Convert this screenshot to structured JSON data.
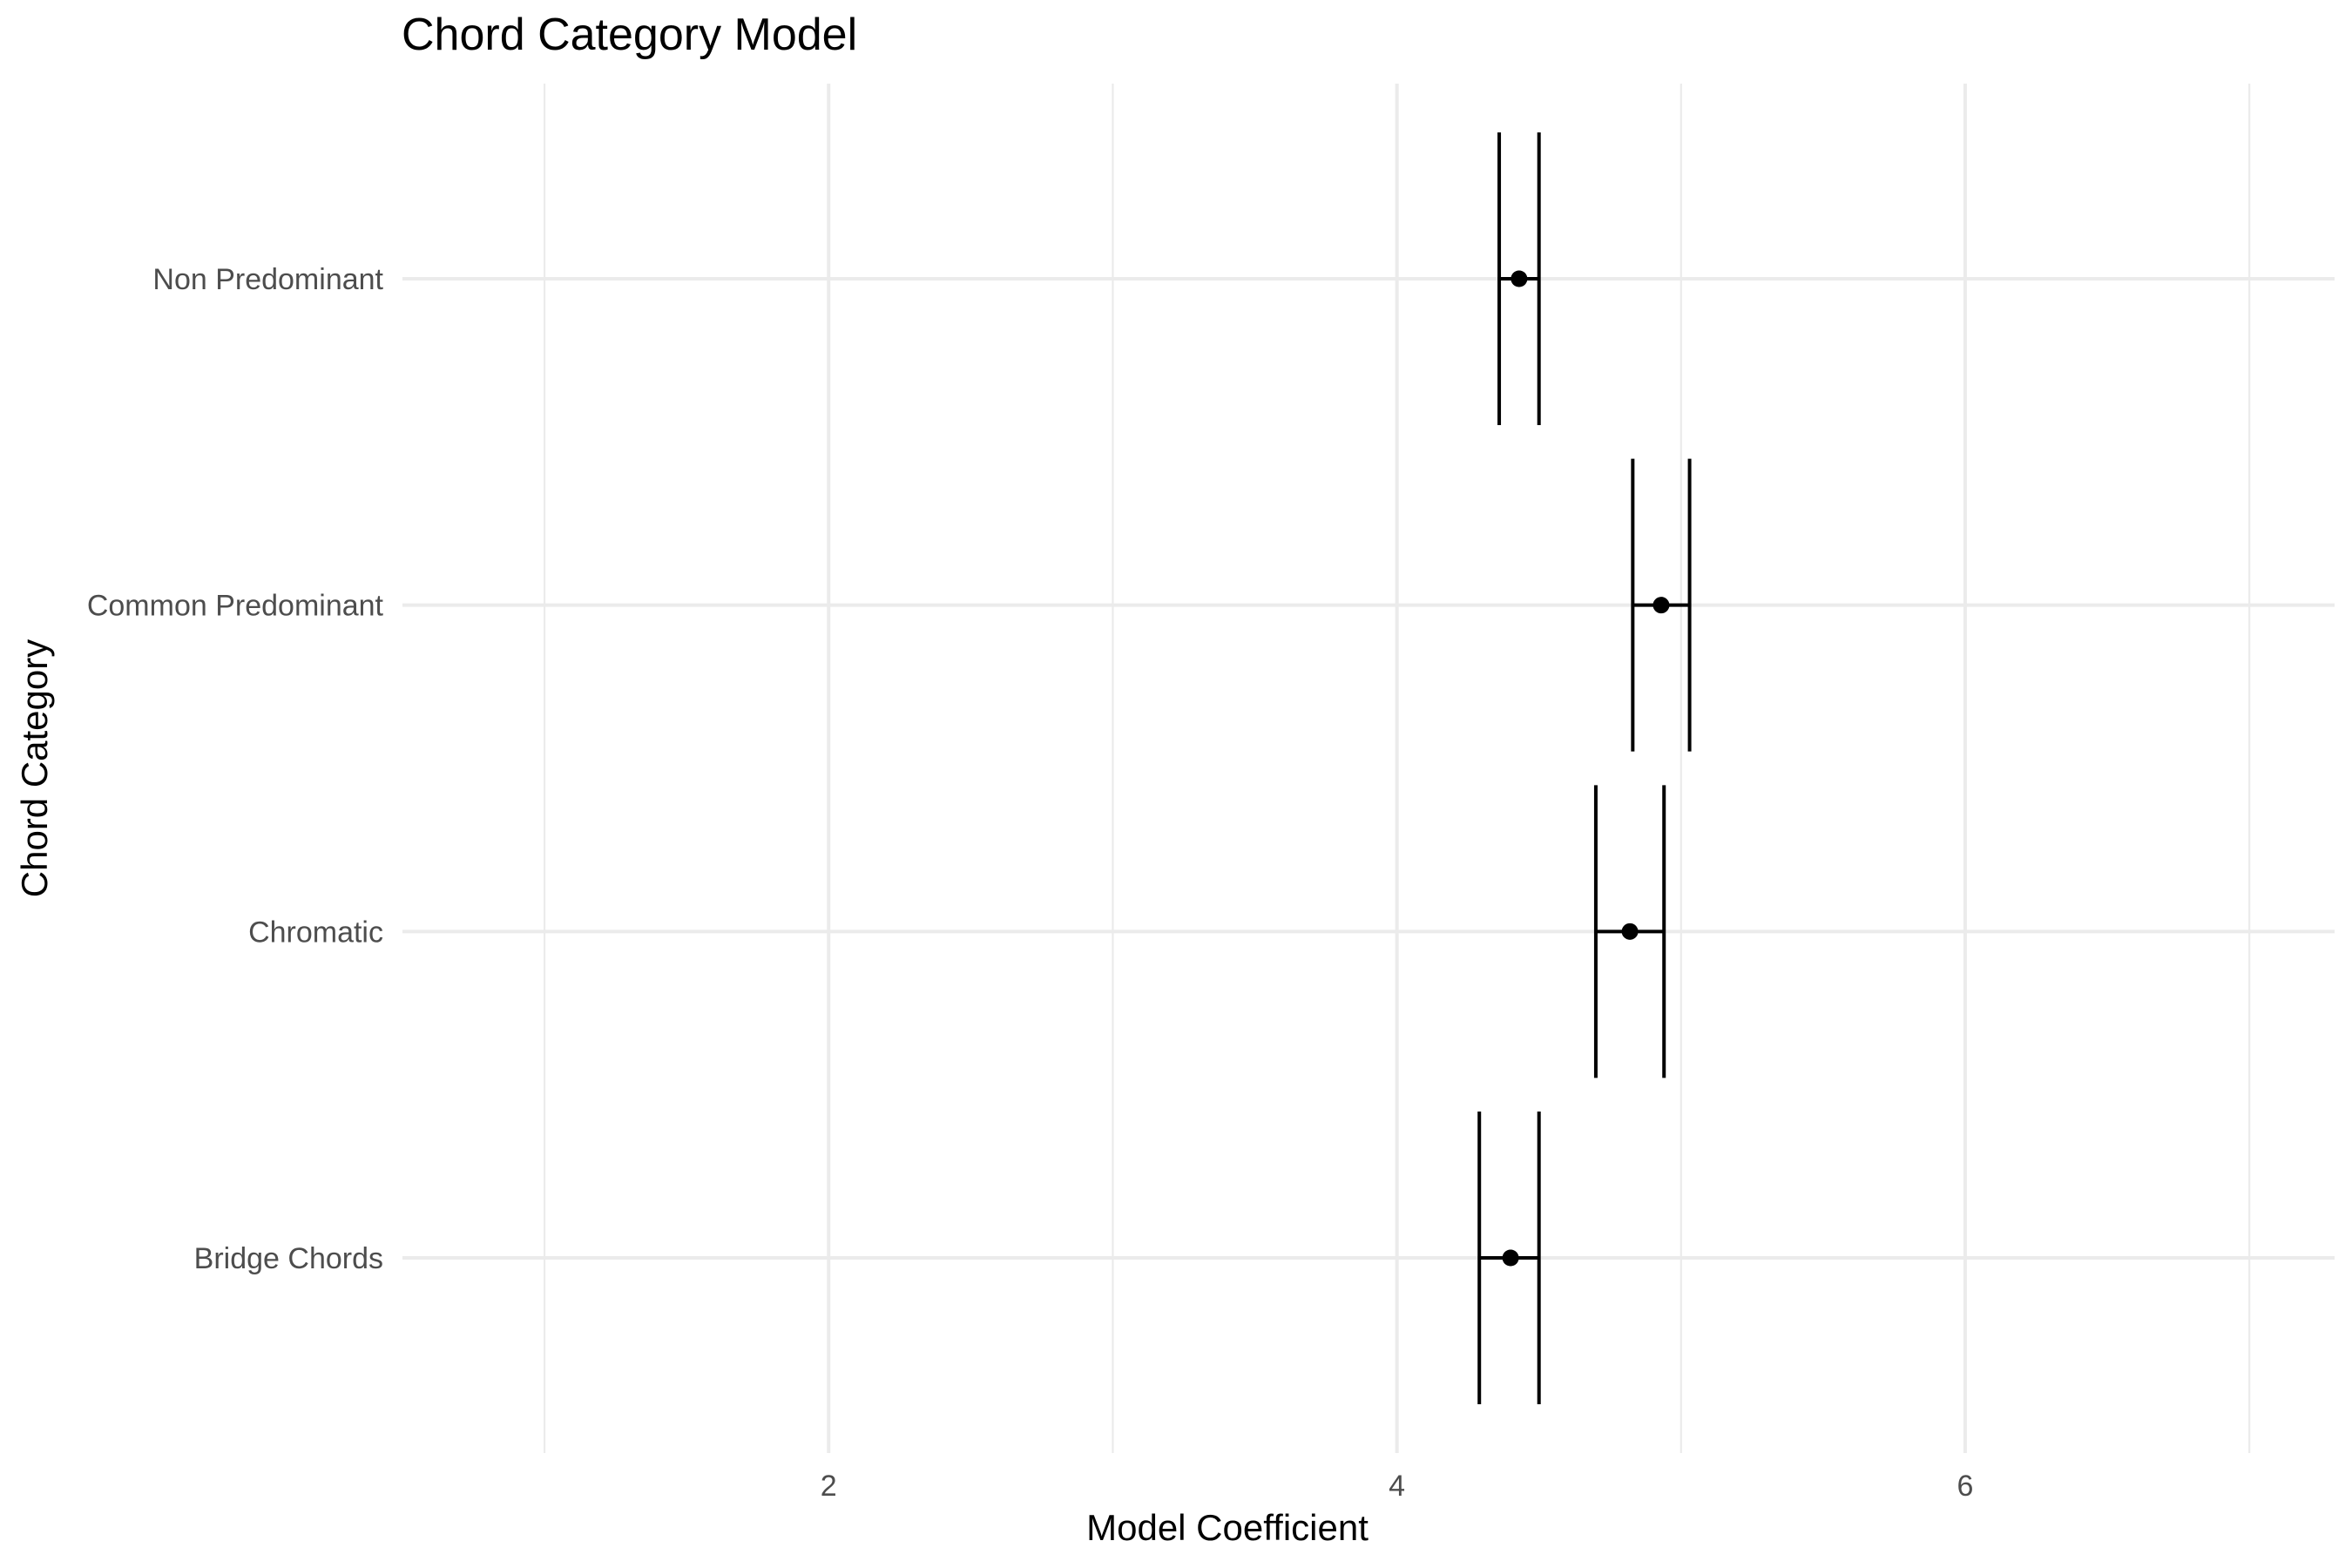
{
  "chart_data": {
    "type": "scatter",
    "title": "Chord Category Model",
    "xlabel": "Model Coefficient",
    "ylabel": "Chord Category",
    "xlim": [
      0.5,
      7.3
    ],
    "x_ticks": [
      2,
      4,
      6
    ],
    "x_minor_ticks": [
      1,
      3,
      5,
      7
    ],
    "grid": true,
    "categories": [
      "Bridge Chords",
      "Chromatic",
      "Common Predominant",
      "Non Predominant"
    ],
    "series": [
      {
        "values": [
          4.4,
          4.82,
          4.93,
          4.43
        ],
        "lower": [
          4.29,
          4.7,
          4.83,
          4.36
        ],
        "upper": [
          4.5,
          4.94,
          5.03,
          4.5
        ]
      }
    ]
  }
}
